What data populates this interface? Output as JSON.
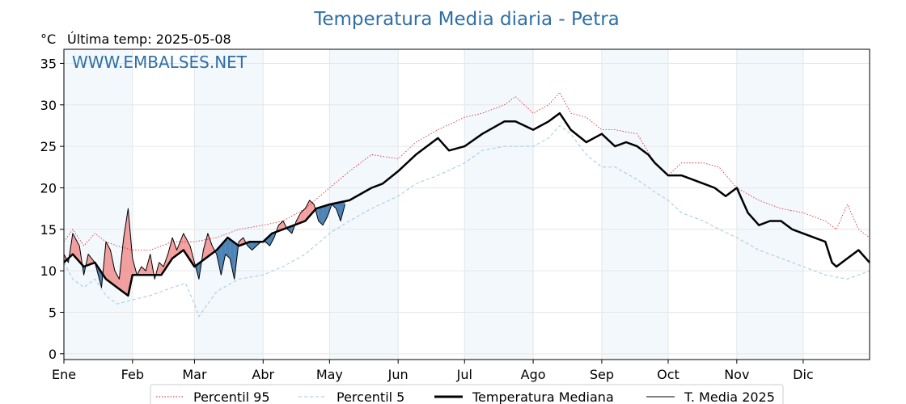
{
  "chart_data": {
    "type": "line",
    "title": "Temperatura Media diaria - Petra",
    "unit_label": "°C",
    "last_update_text": "Última temp: 2025-05-08",
    "watermark": "WWW.EMBALSES.NET",
    "ylim": [
      -0.7,
      36.7
    ],
    "yticks": [
      0,
      5,
      10,
      15,
      20,
      25,
      30,
      35
    ],
    "x_domain_days": [
      1,
      365
    ],
    "months": [
      {
        "label": "Ene",
        "day": 1
      },
      {
        "label": "Feb",
        "day": 32
      },
      {
        "label": "Mar",
        "day": 60
      },
      {
        "label": "Abr",
        "day": 91
      },
      {
        "label": "May",
        "day": 121
      },
      {
        "label": "Jun",
        "day": 152
      },
      {
        "label": "Jul",
        "day": 182
      },
      {
        "label": "Ago",
        "day": 213
      },
      {
        "label": "Sep",
        "day": 244
      },
      {
        "label": "Oct",
        "day": 274
      },
      {
        "label": "Nov",
        "day": 305
      },
      {
        "label": "Dic",
        "day": 335
      }
    ],
    "shaded_months": [
      "Ene",
      "Mar",
      "May",
      "Jul",
      "Sep",
      "Nov"
    ],
    "grid": true,
    "legend_position": "bottom",
    "series": [
      {
        "name": "Percentil 95",
        "color": "#e31a1c",
        "style": "dotted-thin",
        "x": [
          1,
          5,
          10,
          15,
          20,
          25,
          32,
          40,
          50,
          60,
          70,
          80,
          91,
          100,
          110,
          121,
          130,
          140,
          152,
          160,
          170,
          182,
          190,
          200,
          205,
          213,
          220,
          225,
          230,
          237,
          244,
          250,
          260,
          268,
          274,
          280,
          290,
          297,
          305,
          315,
          325,
          335,
          345,
          350,
          355,
          360,
          365
        ],
        "y": [
          13.5,
          15,
          13,
          14.5,
          13.5,
          13,
          12.5,
          12.5,
          13.5,
          13.5,
          14,
          15,
          15.5,
          16,
          17.5,
          20,
          22,
          24,
          23.5,
          25.5,
          27,
          28.5,
          29,
          30,
          31,
          29,
          30,
          31.5,
          29,
          28.5,
          27,
          27,
          26.5,
          23,
          21.5,
          23,
          23,
          22.5,
          20,
          18.5,
          17.5,
          17,
          16,
          15,
          18,
          15,
          14
        ]
      },
      {
        "name": "Percentil 5",
        "color": "#9ecae1",
        "style": "dashed-thin",
        "x": [
          1,
          5,
          10,
          15,
          20,
          25,
          32,
          40,
          50,
          56,
          60,
          62,
          70,
          80,
          91,
          100,
          110,
          121,
          130,
          140,
          152,
          160,
          170,
          182,
          190,
          200,
          213,
          220,
          225,
          230,
          237,
          244,
          250,
          260,
          268,
          274,
          280,
          290,
          297,
          305,
          315,
          325,
          335,
          345,
          355,
          360,
          365
        ],
        "y": [
          11,
          9,
          8,
          9,
          7,
          6,
          6.5,
          7,
          8,
          8.5,
          6,
          4.5,
          7.5,
          9,
          9.5,
          10.5,
          12,
          14.5,
          16,
          17.5,
          19,
          20.5,
          21.5,
          23,
          24.5,
          25,
          25,
          26,
          27.5,
          26.5,
          24,
          22.5,
          22.5,
          21,
          19.5,
          18.5,
          17,
          16,
          15,
          14,
          12.5,
          11.5,
          10.5,
          9.5,
          9,
          9.5,
          10
        ]
      },
      {
        "name": "Temperatura Mediana",
        "color": "#000000",
        "style": "solid-thick",
        "x": [
          1,
          5,
          10,
          15,
          20,
          25,
          30,
          32,
          40,
          45,
          50,
          55,
          60,
          65,
          70,
          75,
          80,
          85,
          91,
          95,
          100,
          105,
          110,
          115,
          121,
          130,
          140,
          145,
          152,
          160,
          170,
          175,
          182,
          190,
          200,
          205,
          213,
          220,
          225,
          230,
          237,
          244,
          250,
          255,
          260,
          265,
          268,
          274,
          280,
          285,
          290,
          295,
          300,
          305,
          310,
          315,
          320,
          325,
          330,
          335,
          340,
          345,
          348,
          350,
          355,
          360,
          365
        ],
        "y": [
          11,
          12,
          10.5,
          11,
          9,
          8,
          7,
          9.5,
          9.5,
          9.5,
          11.5,
          12.5,
          10.5,
          11.5,
          12.5,
          14,
          13,
          13.5,
          13.5,
          14.5,
          15,
          15.5,
          16,
          17.5,
          18,
          18.5,
          20,
          20.5,
          22,
          24,
          26,
          24.5,
          25,
          26.5,
          28,
          28,
          27,
          28,
          29,
          27,
          25.5,
          26.5,
          25,
          25.5,
          25,
          24,
          23,
          21.5,
          21.5,
          21,
          20.5,
          20,
          19,
          20,
          17,
          15.5,
          16,
          16,
          15,
          14.5,
          14,
          13.5,
          11,
          10.5,
          11.5,
          12.5,
          11
        ]
      },
      {
        "name": "T. Media 2025",
        "color": "#000000",
        "style": "solid-thin",
        "x": [
          1,
          3,
          5,
          8,
          10,
          12,
          15,
          18,
          20,
          22,
          24,
          26,
          28,
          30,
          32,
          34,
          36,
          38,
          40,
          42,
          44,
          46,
          48,
          50,
          52,
          55,
          58,
          60,
          62,
          64,
          66,
          68,
          70,
          72,
          74,
          76,
          78,
          80,
          82,
          84,
          86,
          88,
          90,
          92,
          94,
          96,
          98,
          100,
          102,
          104,
          106,
          108,
          110,
          112,
          114,
          116,
          118,
          120,
          122,
          124,
          126,
          128
        ],
        "y": [
          12,
          11,
          14.5,
          13,
          9.5,
          12,
          11,
          8,
          13.5,
          12.5,
          10,
          9,
          14,
          17.5,
          11.5,
          9.5,
          10.5,
          10,
          12,
          9,
          11,
          10.5,
          12,
          14,
          12.5,
          14.5,
          13,
          11,
          9,
          12.5,
          14.5,
          13,
          12,
          9.5,
          12,
          11.5,
          9,
          13.5,
          14,
          13,
          12.5,
          13,
          13.5,
          13.5,
          13,
          14,
          15.5,
          16,
          15,
          14.5,
          16,
          17,
          17.5,
          18.5,
          18,
          16,
          15.5,
          16.5,
          18,
          17.5,
          16,
          18
        ]
      }
    ]
  }
}
